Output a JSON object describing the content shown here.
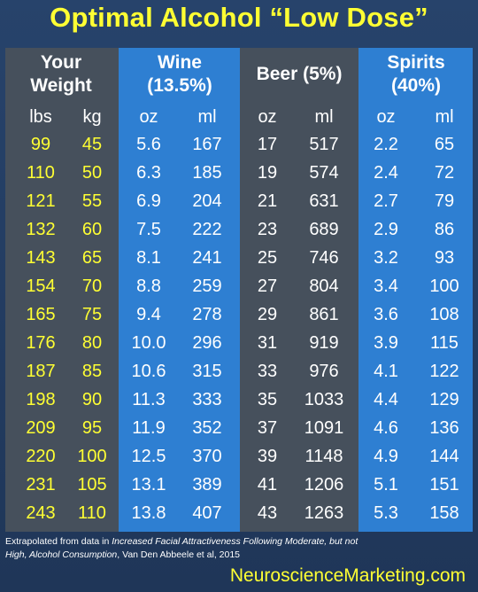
{
  "title": "Optimal Alcohol “Low Dose”",
  "headers": {
    "weight": "Your Weight",
    "wine": "Wine (13.5%)",
    "beer": "Beer (5%)",
    "spirits": "Spirits (40%)"
  },
  "units": [
    "lbs",
    "kg",
    "oz",
    "ml",
    "oz",
    "ml",
    "oz",
    "ml"
  ],
  "rows": [
    [
      "99",
      "45",
      "5.6",
      "167",
      "17",
      "517",
      "2.2",
      "65"
    ],
    [
      "110",
      "50",
      "6.3",
      "185",
      "19",
      "574",
      "2.4",
      "72"
    ],
    [
      "121",
      "55",
      "6.9",
      "204",
      "21",
      "631",
      "2.7",
      "79"
    ],
    [
      "132",
      "60",
      "7.5",
      "222",
      "23",
      "689",
      "2.9",
      "86"
    ],
    [
      "143",
      "65",
      "8.1",
      "241",
      "25",
      "746",
      "3.2",
      "93"
    ],
    [
      "154",
      "70",
      "8.8",
      "259",
      "27",
      "804",
      "3.4",
      "100"
    ],
    [
      "165",
      "75",
      "9.4",
      "278",
      "29",
      "861",
      "3.6",
      "108"
    ],
    [
      "176",
      "80",
      "10.0",
      "296",
      "31",
      "919",
      "3.9",
      "115"
    ],
    [
      "187",
      "85",
      "10.6",
      "315",
      "33",
      "976",
      "4.1",
      "122"
    ],
    [
      "198",
      "90",
      "11.3",
      "333",
      "35",
      "1033",
      "4.4",
      "129"
    ],
    [
      "209",
      "95",
      "11.9",
      "352",
      "37",
      "1091",
      "4.6",
      "136"
    ],
    [
      "220",
      "100",
      "12.5",
      "370",
      "39",
      "1148",
      "4.9",
      "144"
    ],
    [
      "231",
      "105",
      "13.1",
      "389",
      "41",
      "1206",
      "5.1",
      "151"
    ],
    [
      "243",
      "110",
      "13.8",
      "407",
      "43",
      "1263",
      "5.3",
      "158"
    ]
  ],
  "footnote": {
    "prefix": "Extrapolated from data in ",
    "study": "Increased Facial Attractiveness Following Moderate, but not High, Alcohol Consumption",
    "suffix": ", Van Den Abbeele et al, 2015"
  },
  "site": "NeuroscienceMarketing.com",
  "colors": {
    "background": "#223a5e",
    "table_gray": "#46505c",
    "band_blue": "#2e7fd2",
    "title_yellow": "#ffff33"
  }
}
